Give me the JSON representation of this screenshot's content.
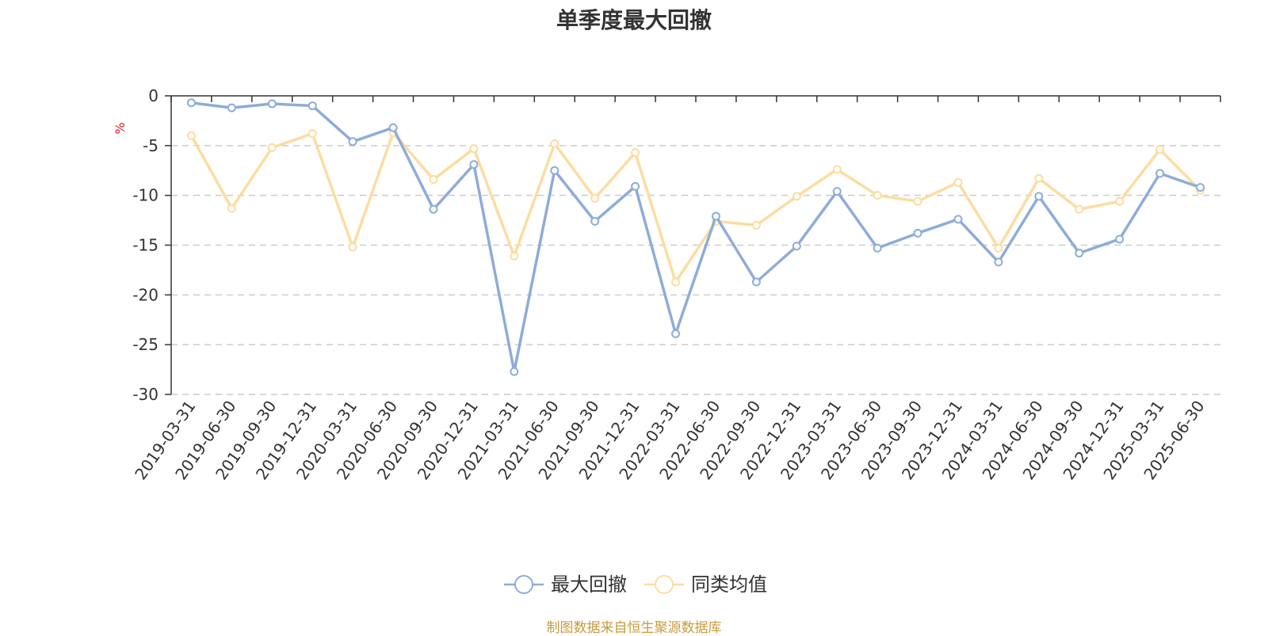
{
  "chart_data": {
    "type": "line",
    "title": "单季度最大回撤",
    "ylabel": "%",
    "ylim": [
      -30,
      0
    ],
    "y_ticks": [
      0,
      -5,
      -10,
      -15,
      -20,
      -25,
      -30
    ],
    "grid": true,
    "legend_position": "bottom",
    "categories": [
      "2019-03-31",
      "2019-06-30",
      "2019-09-30",
      "2019-12-31",
      "2020-03-31",
      "2020-06-30",
      "2020-09-30",
      "2020-12-31",
      "2021-03-31",
      "2021-06-30",
      "2021-09-30",
      "2021-12-31",
      "2022-03-31",
      "2022-06-30",
      "2022-09-30",
      "2022-12-31",
      "2023-03-31",
      "2023-06-30",
      "2023-09-30",
      "2023-12-31",
      "2024-03-31",
      "2024-06-30",
      "2024-09-30",
      "2024-12-31",
      "2025-03-31",
      "2025-06-30"
    ],
    "series": [
      {
        "name": "最大回撤",
        "color": "#8eacd8",
        "values": [
          -0.7,
          -1.2,
          -0.8,
          -1.0,
          -4.6,
          -3.2,
          -11.4,
          -6.9,
          -27.7,
          -7.5,
          -12.6,
          -9.1,
          -23.9,
          -12.1,
          -18.7,
          -15.1,
          -9.6,
          -15.3,
          -13.8,
          -12.4,
          -16.7,
          -10.1,
          -15.8,
          -14.4,
          -7.8,
          -9.2
        ]
      },
      {
        "name": "同类均值",
        "color": "#fddca0",
        "values": [
          -4.0,
          -11.3,
          -5.2,
          -3.8,
          -15.2,
          -3.7,
          -8.4,
          -5.3,
          -16.1,
          -4.8,
          -10.3,
          -5.7,
          -18.7,
          -12.6,
          -13.0,
          -10.1,
          -7.4,
          -10.0,
          -10.6,
          -8.7,
          -15.3,
          -8.3,
          -11.4,
          -10.6,
          -5.4,
          -9.5
        ]
      }
    ]
  },
  "footer": {
    "source_text": "制图数据来自恒生聚源数据库",
    "source_color": "#c89b3c"
  }
}
